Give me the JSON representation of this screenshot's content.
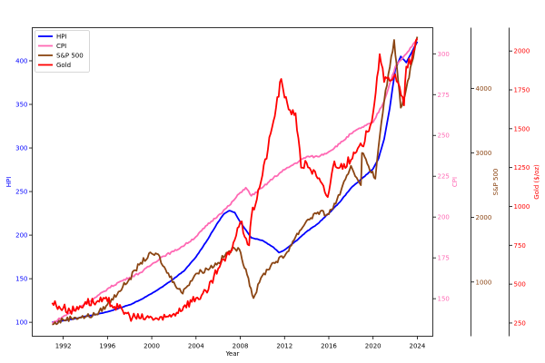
{
  "chart_data": {
    "type": "line",
    "title": "",
    "xlabel": "Year",
    "x_ticks": [
      1992,
      1996,
      2000,
      2004,
      2008,
      2012,
      2016,
      2020,
      2024
    ],
    "xlim": [
      1989.2,
      2025.4
    ],
    "legend": {
      "position": "upper left",
      "entries": [
        "HPI",
        "CPI",
        "S&P 500",
        "Gold"
      ]
    },
    "grid": false,
    "axes": [
      {
        "id": "hpi",
        "label": "HPI",
        "side": "left",
        "color": "#0000ff",
        "ticks": [
          100,
          150,
          200,
          250,
          300,
          350,
          400
        ],
        "ylim": [
          84,
          438
        ]
      },
      {
        "id": "cpi",
        "label": "CPI",
        "side": "right",
        "color": "#ff69b4",
        "ticks": [
          150,
          175,
          200,
          225,
          250,
          275,
          300
        ],
        "ylim": [
          127,
          316
        ]
      },
      {
        "id": "sp500",
        "label": "S&P 500",
        "side": "right",
        "color": "#8b4513",
        "ticks": [
          1000,
          2000,
          3000,
          4000
        ],
        "ylim": [
          160,
          4940
        ]
      },
      {
        "id": "gold",
        "label": "Gold ($/oz)",
        "side": "right",
        "color": "#ff0000",
        "ticks": [
          250,
          500,
          750,
          1000,
          1250,
          1500,
          1750,
          2000
        ],
        "ylim": [
          165,
          2150
        ]
      }
    ],
    "series": [
      {
        "name": "HPI",
        "axis": "hpi",
        "color": "#0000ff",
        "x": [
          1991,
          1992,
          1993,
          1994,
          1995,
          1996,
          1997,
          1998,
          1999,
          2000,
          2001,
          2002,
          2003,
          2004,
          2005,
          2006,
          2006.5,
          2007,
          2007.5,
          2008,
          2009,
          2010,
          2011,
          2011.5,
          2012,
          2013,
          2014,
          2015,
          2016,
          2017,
          2018,
          2019,
          2020,
          2020.5,
          2021,
          2021.5,
          2022,
          2022.5,
          2023,
          2023.5,
          2024
        ],
        "values": [
          100,
          102,
          104,
          107,
          109,
          112,
          116,
          120,
          126,
          133,
          141,
          150,
          160,
          175,
          194,
          215,
          224,
          228,
          226,
          215,
          197,
          194,
          186,
          180,
          183,
          193,
          204,
          213,
          225,
          238,
          254,
          265,
          276,
          288,
          310,
          345,
          390,
          405,
          398,
          410,
          422
        ]
      },
      {
        "name": "CPI",
        "axis": "cpi",
        "color": "#ff69b4",
        "x": [
          1991,
          1992,
          1993,
          1994,
          1995,
          1996,
          1997,
          1998,
          1999,
          2000,
          2001,
          2002,
          2003,
          2004,
          2005,
          2006,
          2007,
          2008,
          2008.5,
          2009,
          2010,
          2011,
          2012,
          2013,
          2014,
          2015,
          2016,
          2017,
          2018,
          2019,
          2020,
          2021,
          2022,
          2022.5,
          2023,
          2024
        ],
        "values": [
          135,
          139,
          143,
          147,
          151,
          156,
          160,
          163,
          166,
          171,
          176,
          179,
          183,
          188,
          195,
          201,
          207,
          215,
          218,
          213,
          218,
          224,
          229,
          233,
          237,
          237,
          240,
          245,
          251,
          255,
          258,
          271,
          292,
          296,
          300,
          309
        ]
      },
      {
        "name": "S&P 500",
        "axis": "sp500",
        "color": "#8b4513",
        "x": [
          1991,
          1992,
          1993,
          1994,
          1995,
          1996,
          1997,
          1998,
          1999,
          2000,
          2000.7,
          2001,
          2002,
          2002.8,
          2003,
          2004,
          2005,
          2006,
          2007,
          2007.8,
          2008.5,
          2009.2,
          2010,
          2011,
          2012,
          2013,
          2014,
          2015,
          2016,
          2017,
          2018,
          2018.9,
          2019,
          2020.2,
          2020.5,
          2021,
          2021.9,
          2022.5,
          2023,
          2023.5,
          2024
        ],
        "values": [
          340,
          415,
          450,
          460,
          500,
          650,
          850,
          1050,
          1300,
          1440,
          1400,
          1250,
          1000,
          820,
          900,
          1130,
          1200,
          1300,
          1480,
          1530,
          1200,
          750,
          1100,
          1300,
          1400,
          1700,
          1950,
          2080,
          2050,
          2350,
          2800,
          2500,
          3000,
          2600,
          3100,
          3800,
          4750,
          3700,
          4000,
          4400,
          4800
        ]
      },
      {
        "name": "Gold",
        "axis": "gold",
        "color": "#ff0000",
        "x": [
          1991,
          1992,
          1993,
          1994,
          1995,
          1996,
          1997,
          1998,
          1999,
          2000,
          2001,
          2002,
          2003,
          2004,
          2005,
          2006,
          2007,
          2008,
          2008.8,
          2009,
          2010,
          2011,
          2011.7,
          2012,
          2012.5,
          2013,
          2013.5,
          2014,
          2015,
          2015.9,
          2016.5,
          2017,
          2018,
          2019,
          2019.5,
          2020,
          2020.6,
          2021,
          2022,
          2022.8,
          2023,
          2023.5,
          2024
        ],
        "values": [
          380,
          345,
          330,
          385,
          385,
          390,
          345,
          295,
          280,
          285,
          270,
          310,
          365,
          410,
          445,
          600,
          690,
          900,
          750,
          930,
          1200,
          1550,
          1820,
          1700,
          1620,
          1600,
          1250,
          1280,
          1180,
          1060,
          1290,
          1250,
          1300,
          1390,
          1480,
          1600,
          1980,
          1800,
          1850,
          1650,
          1900,
          1950,
          2080
        ]
      }
    ]
  }
}
